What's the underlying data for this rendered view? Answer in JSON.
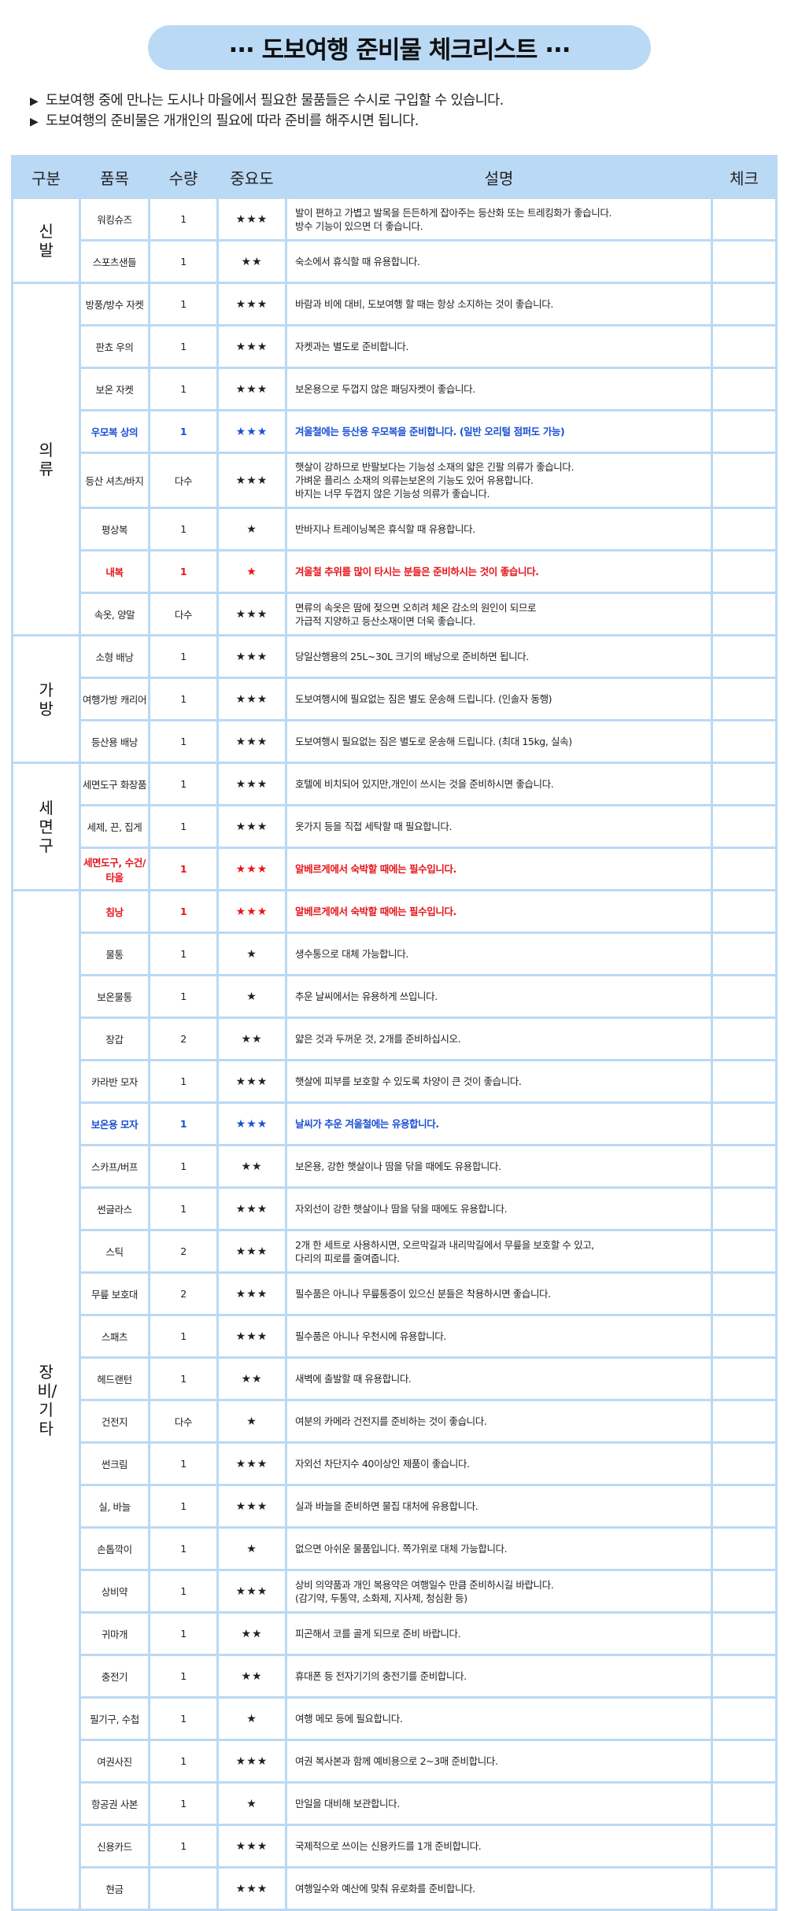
{
  "title": "··· 도보여행 준비물 체크리스트 ···",
  "notes": [
    "도보여행 중에 만나는 도시나 마을에서 필요한 물품들은 수시로 구입할 수 있습니다.",
    "도보여행의 준비물은 개개인의 필요에 따라 준비를 해주시면 됩니다."
  ],
  "bullet_icon": "▶",
  "colors": {
    "header_bg": "#bad9f5",
    "highlight_blue": "#1a4fd6",
    "highlight_red": "#e8141a"
  },
  "table": {
    "headers": [
      "구분",
      "품목",
      "수량",
      "중요도",
      "설명",
      "체크"
    ],
    "groups": [
      {
        "category": "신발",
        "rows": [
          {
            "item": "워킹슈즈",
            "qty": "1",
            "stars": "★★★",
            "desc": "발이 편하고 가볍고 발목을 든든하게 잡아주는 등산화 또는 트레킹화가 좋습니다.\n방수 기능이 있으면 더 좋습니다."
          },
          {
            "item": "스포츠샌들",
            "qty": "1",
            "stars": "★★",
            "desc": "숙소에서 휴식할 때 유용합니다."
          }
        ]
      },
      {
        "category": "의류",
        "rows": [
          {
            "item": "방풍/방수 자켓",
            "qty": "1",
            "stars": "★★★",
            "desc": "바람과 비에 대비, 도보여행 할 때는 항상 소지하는 것이 좋습니다."
          },
          {
            "item": "판쵸 우의",
            "qty": "1",
            "stars": "★★★",
            "desc": "자켓과는 별도로 준비합니다."
          },
          {
            "item": "보온 자켓",
            "qty": "1",
            "stars": "★★★",
            "desc": "보온용으로 두껍지 않은 패딩자켓이 좋습니다."
          },
          {
            "item": "우모복 상의",
            "qty": "1",
            "stars": "★★★",
            "desc": "겨울철에는 등산용 우모복을 준비합니다. (일반 오리털 점퍼도 가능)",
            "highlight": "blue"
          },
          {
            "item": "등산 셔츠/바지",
            "qty": "다수",
            "stars": "★★★",
            "desc": "햇살이 강하므로 반팔보다는 기능성 소재의 얇은 긴팔 의류가 좋습니다.\n가벼운 플리스 소재의 의류는보온의 기능도 있어 유용합니다.\n바지는 너무 두껍지 않은 기능성 의류가 좋습니다.",
            "tall": true
          },
          {
            "item": "평상복",
            "qty": "1",
            "stars": "★",
            "desc": "반바지나 트레이닝복은 휴식할 때 유용합니다."
          },
          {
            "item": "내복",
            "qty": "1",
            "stars": "★",
            "desc": "겨울철 추위를 많이 타시는 분들은 준비하시는 것이 좋습니다.",
            "highlight": "red"
          },
          {
            "item": "속옷, 양말",
            "qty": "다수",
            "stars": "★★★",
            "desc": "면류의 속옷은 땀에 젖으면 오히려 체온 감소의 원인이 되므로\n가급적 지양하고 등산소재이면 더욱 좋습니다."
          }
        ]
      },
      {
        "category": "가방",
        "rows": [
          {
            "item": "소형 배낭",
            "qty": "1",
            "stars": "★★★",
            "desc": "당일산행용의 25L~30L 크기의 배낭으로 준비하면 됩니다."
          },
          {
            "item": "여행가방 캐리어",
            "qty": "1",
            "stars": "★★★",
            "desc": "도보여행시에 필요없는 짐은 별도 운송해 드립니다. (인솔자 동행)"
          },
          {
            "item": "등산용 배낭",
            "qty": "1",
            "stars": "★★★",
            "desc": "도보여행시 필요없는 짐은 별도로 운송해 드립니다. (최대 15kg, 실속)"
          }
        ]
      },
      {
        "category": "세면구",
        "rows": [
          {
            "item": "세면도구 화장품",
            "qty": "1",
            "stars": "★★★",
            "desc": "호텔에 비치되어 있지만,개인이 쓰시는 것을 준비하시면 좋습니다."
          },
          {
            "item": "세제, 끈, 집게",
            "qty": "1",
            "stars": "★★★",
            "desc": "옷가지 등을 직접 세탁할 때 필요합니다."
          },
          {
            "item": "세면도구, 수건/타올",
            "qty": "1",
            "stars": "★★★",
            "desc": "알베르게에서 숙박할 때에는 필수입니다.",
            "highlight": "red"
          }
        ]
      },
      {
        "category": "장비/기타",
        "rows": [
          {
            "item": "침낭",
            "qty": "1",
            "stars": "★★★",
            "desc": "알베르게에서 숙박할 때에는 필수입니다.",
            "highlight": "red"
          },
          {
            "item": "물통",
            "qty": "1",
            "stars": "★",
            "desc": "생수통으로 대체 가능합니다."
          },
          {
            "item": "보온물통",
            "qty": "1",
            "stars": "★",
            "desc": "추운 날씨에서는 유용하게 쓰입니다."
          },
          {
            "item": "장갑",
            "qty": "2",
            "stars": "★★",
            "desc": "얇은 것과 두꺼운 것, 2개를 준비하십시오."
          },
          {
            "item": "카라반 모자",
            "qty": "1",
            "stars": "★★★",
            "desc": "햇살에 피부를 보호할 수 있도록 차양이 큰 것이 좋습니다."
          },
          {
            "item": "보온용 모자",
            "qty": "1",
            "stars": "★★★",
            "desc": "날씨가 추운 겨울철에는 유용합니다.",
            "highlight": "blue"
          },
          {
            "item": "스카프/버프",
            "qty": "1",
            "stars": "★★",
            "desc": "보온용, 강한 햇살이나 땀을 닦을 때에도 유용합니다."
          },
          {
            "item": "썬글라스",
            "qty": "1",
            "stars": "★★★",
            "desc": "자외선이 강한 햇살이나 땀을 닦을 때에도 유용합니다."
          },
          {
            "item": "스틱",
            "qty": "2",
            "stars": "★★★",
            "desc": "2개 한 세트로 사용하시면, 오르막길과 내리막길에서 무릎을 보호할 수 있고,\n다리의 피로를 줄여줍니다."
          },
          {
            "item": "무릎 보호대",
            "qty": "2",
            "stars": "★★★",
            "desc": "필수품은 아니나 무릎통증이 있으신 분들은 착용하시면 좋습니다."
          },
          {
            "item": "스패츠",
            "qty": "1",
            "stars": "★★★",
            "desc": "필수품은 아니나 우천시에 유용합니다."
          },
          {
            "item": "헤드랜턴",
            "qty": "1",
            "stars": "★★",
            "desc": "새벽에 출발할 때 유용합니다."
          },
          {
            "item": "건전지",
            "qty": "다수",
            "stars": "★",
            "desc": "여분의 카메라 건전지를 준비하는 것이 좋습니다."
          },
          {
            "item": "썬크림",
            "qty": "1",
            "stars": "★★★",
            "desc": "자외선 차단지수 40이상인 제품이 좋습니다."
          },
          {
            "item": "실, 바늘",
            "qty": "1",
            "stars": "★★★",
            "desc": "실과 바늘을 준비하면 물집 대처에 유용합니다."
          },
          {
            "item": "손톱깍이",
            "qty": "1",
            "stars": "★",
            "desc": "없으면 아쉬운 물품입니다. 쪽가위로 대체 가능합니다."
          },
          {
            "item": "상비약",
            "qty": "1",
            "stars": "★★★",
            "desc": "상비 의약품과 개인 복용약은 여행일수 만큼 준비하시길 바랍니다.\n(감기약, 두통약, 소화제, 지사제, 청심환 등)"
          },
          {
            "item": "귀마개",
            "qty": "1",
            "stars": "★★",
            "desc": "피곤해서 코를 골게 되므로 준비 바랍니다."
          },
          {
            "item": "충전기",
            "qty": "1",
            "stars": "★★",
            "desc": "휴대폰 등 전자기기의 충전기를 준비합니다."
          },
          {
            "item": "필기구, 수첩",
            "qty": "1",
            "stars": "★",
            "desc": "여행 메모 등에 필요합니다."
          },
          {
            "item": "여권사진",
            "qty": "1",
            "stars": "★★★",
            "desc": "여권 복사본과 함께 예비용으로 2~3매 준비합니다."
          },
          {
            "item": "항공권 사본",
            "qty": "1",
            "stars": "★",
            "desc": "만일을 대비해 보관합니다."
          },
          {
            "item": "신용카드",
            "qty": "1",
            "stars": "★★★",
            "desc": "국제적으로 쓰이는 신용카드를 1개 준비합니다."
          },
          {
            "item": "현금",
            "qty": "",
            "stars": "★★★",
            "desc": "여행일수와  예산에 맞춰 유로화를 준비합니다."
          }
        ]
      }
    ]
  }
}
